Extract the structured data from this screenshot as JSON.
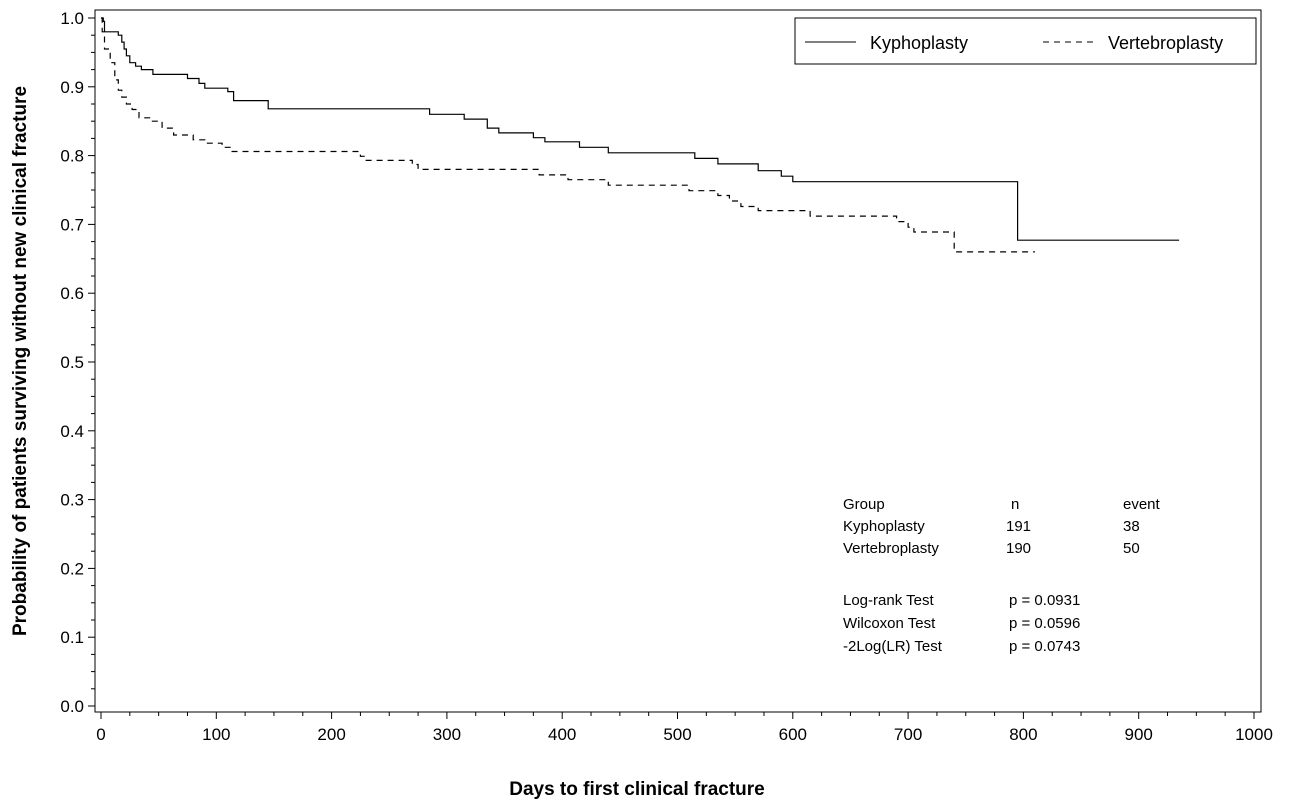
{
  "chart_data": {
    "type": "line",
    "title": "",
    "xlabel": "Days to first clinical fracture",
    "ylabel": "Probability of patients surviving without new clinical fracture",
    "xlim": [
      0,
      1000
    ],
    "ylim": [
      0.0,
      1.0
    ],
    "x_ticks": [
      "0",
      "100",
      "200",
      "300",
      "400",
      "500",
      "600",
      "700",
      "800",
      "900",
      "1000"
    ],
    "y_ticks": [
      "0.0",
      "0.1",
      "0.2",
      "0.3",
      "0.4",
      "0.5",
      "0.6",
      "0.7",
      "0.8",
      "0.9",
      "1.0"
    ],
    "grid": false,
    "legend": "top-right",
    "series": [
      {
        "name": "Kyphoplasty",
        "style": "solid",
        "color": "#000000",
        "points": [
          [
            0,
            1.0
          ],
          [
            2,
            0.995
          ],
          [
            3,
            0.98
          ],
          [
            15,
            0.975
          ],
          [
            18,
            0.965
          ],
          [
            20,
            0.955
          ],
          [
            22,
            0.945
          ],
          [
            25,
            0.935
          ],
          [
            30,
            0.93
          ],
          [
            35,
            0.925
          ],
          [
            45,
            0.918
          ],
          [
            75,
            0.912
          ],
          [
            85,
            0.905
          ],
          [
            90,
            0.898
          ],
          [
            110,
            0.893
          ],
          [
            115,
            0.88
          ],
          [
            145,
            0.868
          ],
          [
            285,
            0.86
          ],
          [
            315,
            0.853
          ],
          [
            335,
            0.84
          ],
          [
            345,
            0.833
          ],
          [
            375,
            0.826
          ],
          [
            385,
            0.82
          ],
          [
            415,
            0.812
          ],
          [
            440,
            0.804
          ],
          [
            515,
            0.796
          ],
          [
            535,
            0.788
          ],
          [
            570,
            0.778
          ],
          [
            590,
            0.77
          ],
          [
            600,
            0.762
          ],
          [
            795,
            0.762
          ],
          [
            795,
            0.677
          ],
          [
            935,
            0.677
          ]
        ]
      },
      {
        "name": "Vertebroplasty",
        "style": "dashed",
        "color": "#000000",
        "points": [
          [
            0,
            1.0
          ],
          [
            1,
            0.98
          ],
          [
            3,
            0.955
          ],
          [
            8,
            0.935
          ],
          [
            12,
            0.91
          ],
          [
            15,
            0.895
          ],
          [
            18,
            0.885
          ],
          [
            22,
            0.875
          ],
          [
            27,
            0.867
          ],
          [
            33,
            0.855
          ],
          [
            43,
            0.85
          ],
          [
            53,
            0.84
          ],
          [
            63,
            0.83
          ],
          [
            80,
            0.823
          ],
          [
            90,
            0.818
          ],
          [
            105,
            0.812
          ],
          [
            112,
            0.806
          ],
          [
            225,
            0.799
          ],
          [
            230,
            0.793
          ],
          [
            270,
            0.787
          ],
          [
            275,
            0.78
          ],
          [
            380,
            0.772
          ],
          [
            405,
            0.765
          ],
          [
            440,
            0.757
          ],
          [
            510,
            0.749
          ],
          [
            535,
            0.742
          ],
          [
            545,
            0.734
          ],
          [
            555,
            0.726
          ],
          [
            570,
            0.72
          ],
          [
            615,
            0.712
          ],
          [
            690,
            0.704
          ],
          [
            700,
            0.696
          ],
          [
            705,
            0.689
          ],
          [
            740,
            0.66
          ],
          [
            810,
            0.66
          ]
        ]
      }
    ]
  },
  "stats": {
    "headers": [
      "Group",
      "n",
      "event"
    ],
    "rows": [
      [
        "Kyphoplasty",
        "191",
        "38"
      ],
      [
        "Vertebroplasty",
        "190",
        "50"
      ]
    ],
    "tests": [
      [
        "Log-rank Test",
        "p = 0.0931"
      ],
      [
        "Wilcoxon Test",
        "p = 0.0596"
      ],
      [
        "-2Log(LR) Test",
        "p = 0.0743"
      ]
    ]
  }
}
